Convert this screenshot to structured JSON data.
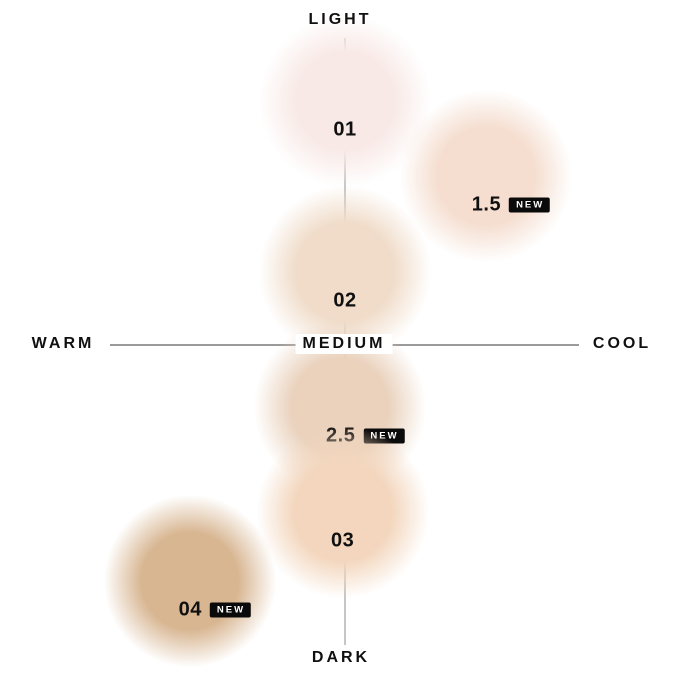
{
  "labels": {
    "new_badge": "NEW"
  },
  "style": {
    "background": "#ffffff",
    "horizontal_line_color": "#9b9b9b",
    "vertical_line_color": "#c6c6c6",
    "text_color": "#101010",
    "badge_bg": "#0a0a0a",
    "badge_text_color": "#ffffff"
  },
  "chart_data": {
    "type": "scatter",
    "description": "Shade map plotting product shades by depth (light-dark) and undertone (warm-cool)",
    "x_axis": {
      "left_label": "WARM",
      "center_label": "MEDIUM",
      "right_label": "COOL",
      "range": [
        -1,
        1
      ]
    },
    "y_axis": {
      "top_label": "LIGHT",
      "bottom_label": "DARK",
      "range": [
        -1,
        1
      ]
    },
    "grid": false,
    "points": [
      {
        "label": "01",
        "is_new": false,
        "swatch_color": "#f8e9e6",
        "x": 0.0,
        "y": 0.81
      },
      {
        "label": "1.5",
        "is_new": true,
        "swatch_color": "#f5ded0",
        "x": 0.6,
        "y": 0.56
      },
      {
        "label": "02",
        "is_new": false,
        "swatch_color": "#f0dcc9",
        "x": 0.0,
        "y": 0.24
      },
      {
        "label": "2.5",
        "is_new": true,
        "swatch_color": "#ead2bd",
        "x": -0.02,
        "y": -0.21
      },
      {
        "label": "03",
        "is_new": false,
        "swatch_color": "#f3d6bd",
        "x": -0.01,
        "y": -0.56
      },
      {
        "label": "04",
        "is_new": true,
        "swatch_color": "#d8b692",
        "x": -0.66,
        "y": -0.79
      }
    ]
  }
}
